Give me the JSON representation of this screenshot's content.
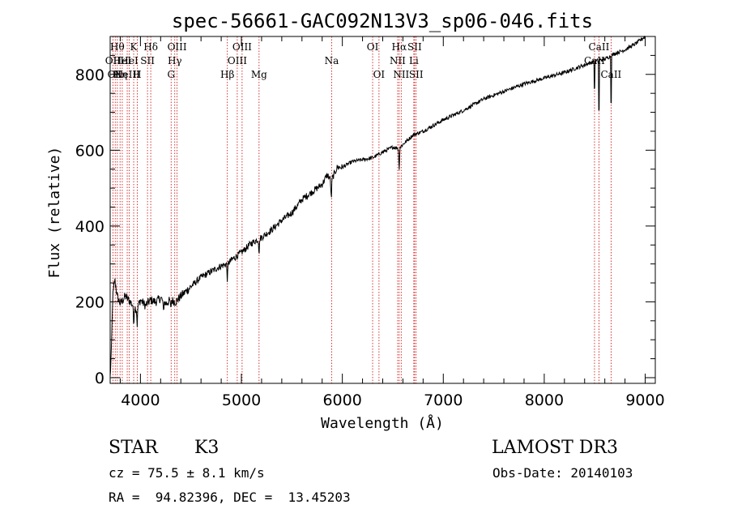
{
  "chart_data": {
    "type": "line",
    "title": "spec-56661-GAC092N13V3_sp06-046.fits",
    "xlabel": "Wavelength (Å)",
    "ylabel": "Flux (relative)",
    "xlim": [
      3700,
      9100
    ],
    "ylim": [
      -15,
      900
    ],
    "xticks": [
      4000,
      5000,
      6000,
      7000,
      8000,
      9000
    ],
    "yticks": [
      0,
      200,
      400,
      600,
      800
    ],
    "x_minor_step": 200,
    "y_minor_step": 50,
    "line_color": "#000000",
    "marker_color": "#cc0000",
    "spectrum_anchors": [
      [
        3700,
        0
      ],
      [
        3712,
        70
      ],
      [
        3725,
        210
      ],
      [
        3745,
        260
      ],
      [
        3770,
        215
      ],
      [
        3800,
        195
      ],
      [
        3850,
        215
      ],
      [
        3900,
        200
      ],
      [
        3960,
        180
      ],
      [
        4000,
        205
      ],
      [
        4050,
        190
      ],
      [
        4100,
        205
      ],
      [
        4150,
        200
      ],
      [
        4200,
        210
      ],
      [
        4250,
        195
      ],
      [
        4300,
        205
      ],
      [
        4350,
        200
      ],
      [
        4400,
        215
      ],
      [
        4500,
        240
      ],
      [
        4600,
        265
      ],
      [
        4700,
        280
      ],
      [
        4800,
        295
      ],
      [
        4860,
        300
      ],
      [
        4900,
        310
      ],
      [
        5000,
        330
      ],
      [
        5100,
        355
      ],
      [
        5200,
        370
      ],
      [
        5300,
        390
      ],
      [
        5400,
        415
      ],
      [
        5500,
        435
      ],
      [
        5600,
        470
      ],
      [
        5700,
        490
      ],
      [
        5800,
        510
      ],
      [
        5850,
        535
      ],
      [
        5890,
        520
      ],
      [
        5950,
        555
      ],
      [
        6000,
        555
      ],
      [
        6100,
        570
      ],
      [
        6200,
        575
      ],
      [
        6300,
        580
      ],
      [
        6400,
        595
      ],
      [
        6500,
        608
      ],
      [
        6560,
        605
      ],
      [
        6600,
        615
      ],
      [
        6700,
        640
      ],
      [
        6800,
        650
      ],
      [
        6900,
        665
      ],
      [
        7000,
        680
      ],
      [
        7200,
        705
      ],
      [
        7400,
        735
      ],
      [
        7600,
        755
      ],
      [
        7800,
        775
      ],
      [
        8000,
        790
      ],
      [
        8200,
        805
      ],
      [
        8400,
        825
      ],
      [
        8500,
        835
      ],
      [
        8600,
        840
      ],
      [
        8700,
        855
      ],
      [
        8800,
        865
      ],
      [
        8900,
        880
      ],
      [
        8950,
        890
      ],
      [
        9000,
        900
      ]
    ],
    "absorption_dips": [
      [
        3933,
        50
      ],
      [
        3968,
        45
      ],
      [
        4227,
        30
      ],
      [
        4300,
        25
      ],
      [
        4861,
        45
      ],
      [
        5175,
        40
      ],
      [
        5890,
        55
      ],
      [
        6563,
        60
      ],
      [
        8498,
        120
      ],
      [
        8542,
        220
      ],
      [
        8662,
        200
      ]
    ],
    "spectral_lines": [
      {
        "x": 3727,
        "label": "OII",
        "row": 2
      },
      {
        "x": 3750,
        "label": "OII",
        "row": 3
      },
      {
        "x": 3771,
        "label": "Hθ",
        "row": 1
      },
      {
        "x": 3798,
        "label": "Hη",
        "row": 3
      },
      {
        "x": 3820,
        "label": "HeI",
        "row": 2
      },
      {
        "x": 3869,
        "label": "NeIII",
        "row": 3
      },
      {
        "x": 3889,
        "label": "HeI",
        "row": 2
      },
      {
        "x": 3933,
        "label": "K",
        "row": 1
      },
      {
        "x": 3968,
        "label": "H",
        "row": 3
      },
      {
        "x": 4070,
        "label": "SII",
        "row": 2
      },
      {
        "x": 4102,
        "label": "Hδ",
        "row": 1
      },
      {
        "x": 4304,
        "label": "G",
        "row": 3
      },
      {
        "x": 4340,
        "label": "Hγ",
        "row": 2
      },
      {
        "x": 4363,
        "label": "OIII",
        "row": 1
      },
      {
        "x": 4861,
        "label": "Hβ",
        "row": 3
      },
      {
        "x": 4959,
        "label": "OIII",
        "row": 2
      },
      {
        "x": 5007,
        "label": "OIII",
        "row": 1
      },
      {
        "x": 5175,
        "label": "Mg",
        "row": 3
      },
      {
        "x": 5894,
        "label": "Na",
        "row": 2
      },
      {
        "x": 6300,
        "label": "OI",
        "row": 1
      },
      {
        "x": 6363,
        "label": "OI",
        "row": 3
      },
      {
        "x": 6548,
        "label": "NII",
        "row": 2
      },
      {
        "x": 6563,
        "label": "Hα",
        "row": 1
      },
      {
        "x": 6583,
        "label": "NII",
        "row": 3
      },
      {
        "x": 6708,
        "label": "Li",
        "row": 2
      },
      {
        "x": 6716,
        "label": "SII",
        "row": 1
      },
      {
        "x": 6731,
        "label": "SII",
        "row": 3
      },
      {
        "x": 8498,
        "label": "CaII",
        "row": 2
      },
      {
        "x": 8542,
        "label": "CaII",
        "row": 1
      },
      {
        "x": 8662,
        "label": "CaII",
        "row": 3
      }
    ]
  },
  "info": {
    "object_class": "STAR",
    "subclass": "K3",
    "survey": "LAMOST DR3",
    "cz": "cz = 75.5 ± 8.1 km/s",
    "obs_date": "Obs-Date: 20140103",
    "coords": "RA =  94.82396, DEC =  13.45203"
  }
}
